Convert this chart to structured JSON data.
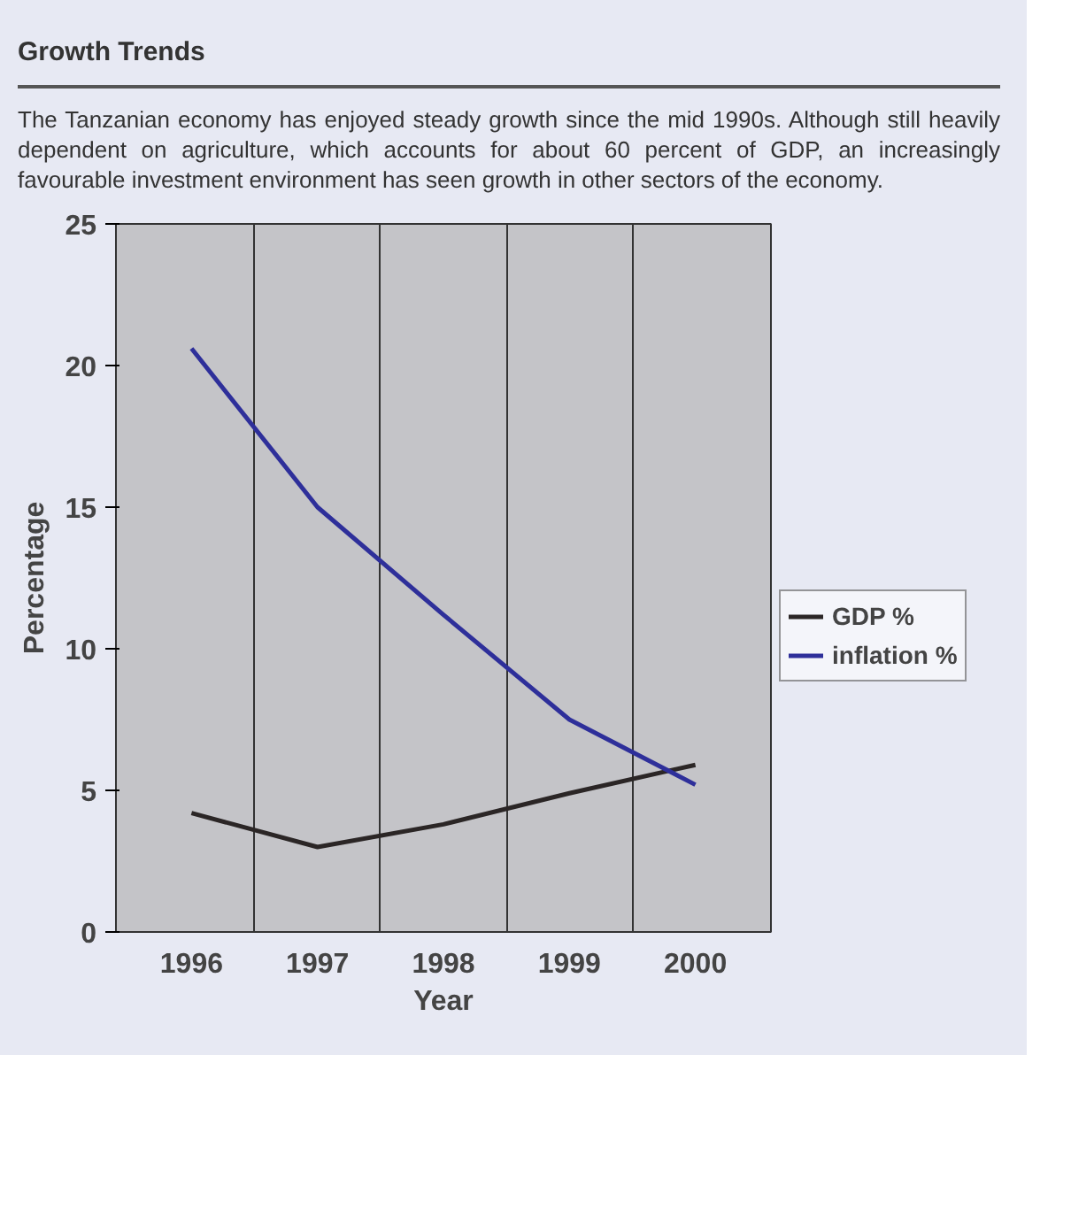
{
  "chart_data": {
    "type": "line",
    "title": "Growth Trends",
    "subtitle": "The Tanzanian economy has enjoyed steady growth since the mid 1990s. Although still heavily dependent on agriculture, which accounts for about 60 percent of GDP, an increasingly favourable investment environment has seen growth in other sectors of the economy.",
    "xlabel": "Year",
    "ylabel": "Percentage",
    "categories": [
      "1996",
      "1997",
      "1998",
      "1999",
      "2000"
    ],
    "series": [
      {
        "name": "GDP %",
        "color": "#2b2626",
        "values": [
          4.2,
          3.0,
          3.8,
          4.9,
          5.9
        ]
      },
      {
        "name": "inflation %",
        "color": "#2e2f9a",
        "values": [
          20.6,
          15.0,
          11.2,
          7.5,
          5.2
        ]
      }
    ],
    "ylim": [
      0,
      25
    ],
    "yticks": [
      0,
      5,
      10,
      15,
      20,
      25
    ],
    "grid": "x",
    "legend": "right",
    "marker": "none",
    "line_style": "solid"
  }
}
